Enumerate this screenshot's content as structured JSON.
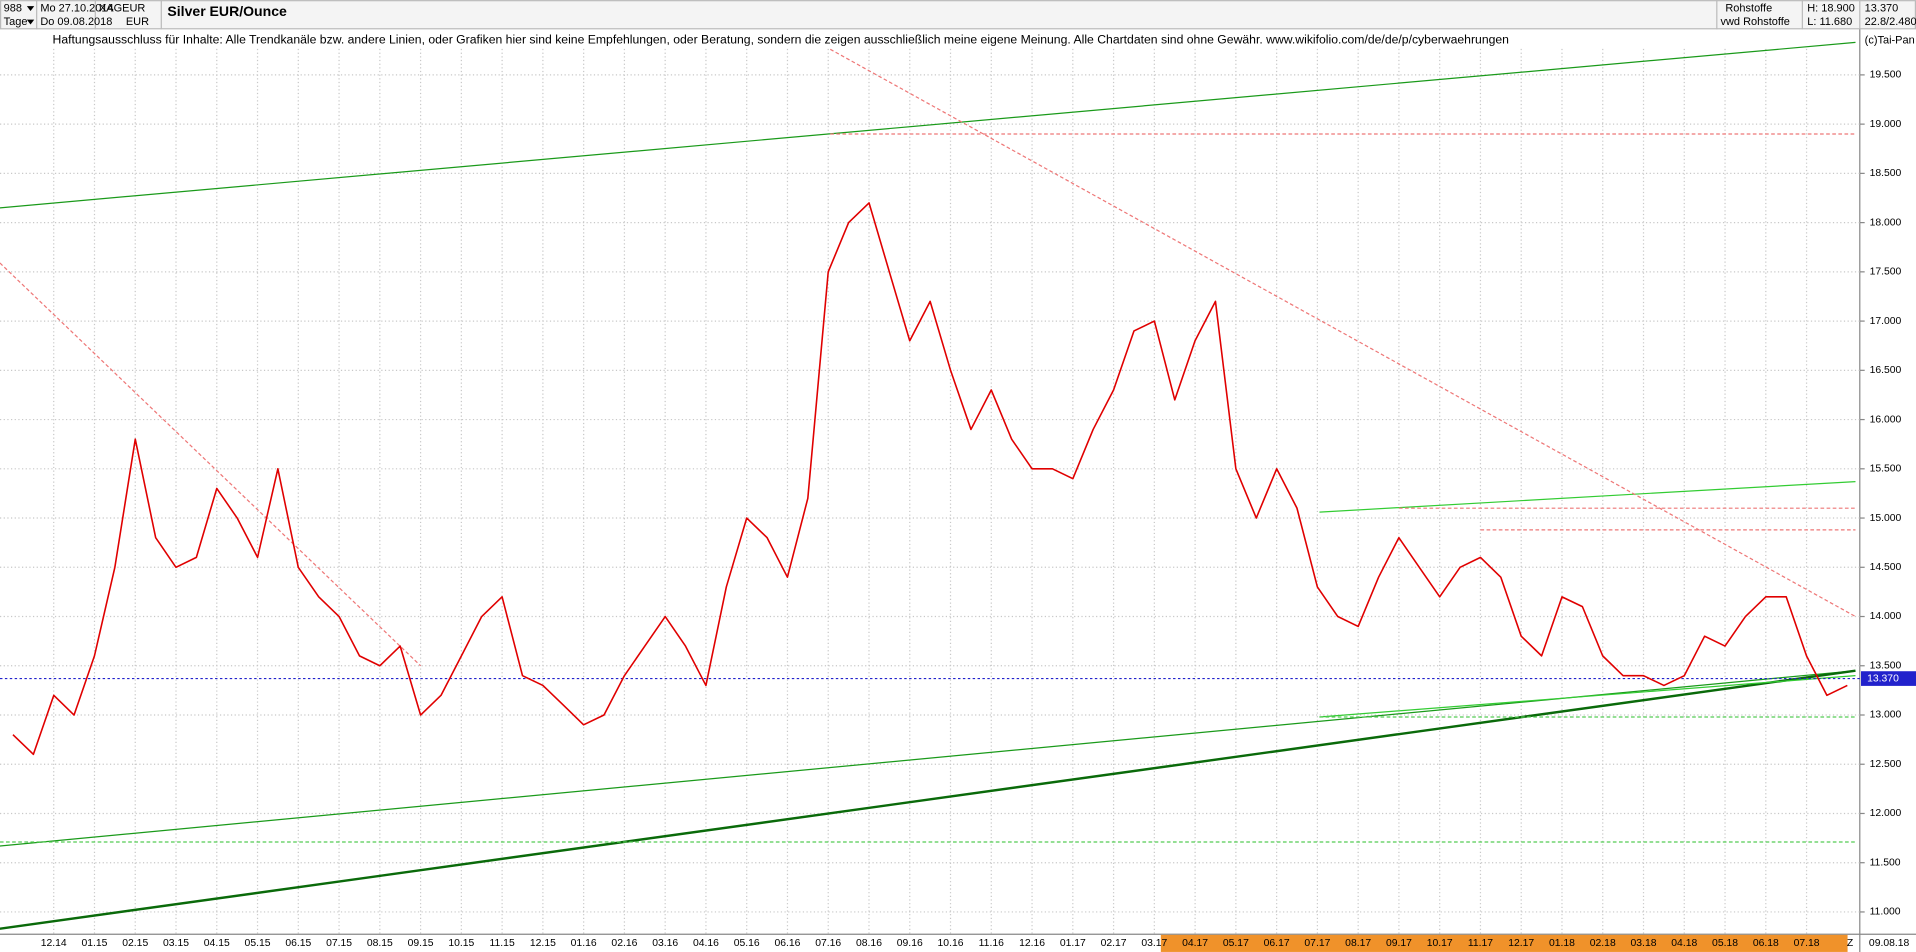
{
  "header": {
    "count": "988",
    "period": "Tage",
    "date_from": "Mo 27.10.2014",
    "date_to": "Do 09.08.2018",
    "symbol": "XAGEUR",
    "currency": "EUR",
    "group": "Rohstoffe",
    "source": "vwd Rohstoffe",
    "high": "H: 18.900",
    "low": "L: 11.680",
    "info": "22.8/2.480",
    "disclaimer": "Haftungsausschluss für Inhalte: Alle Trendkanäle bzw. andere Linien, oder Grafiken hier sind keine Empfehlungen, oder Beratung, sondern die zeigen ausschließlich meine eigene Meinung. Alle Chartdaten sind ohne Gewähr.  www.wikifolio.com/de/de/p/cyberwaehrungen",
    "copyright": "(c)Tai-Pan",
    "end_marker": "Z",
    "end_date": "09.08.18"
  },
  "chart_data": {
    "type": "line",
    "title": "Silver EUR/Ounce",
    "color": "#e00000",
    "categories": [
      null,
      null,
      "12.14",
      null,
      "01.15",
      null,
      "02.15",
      null,
      "03.15",
      null,
      "04.15",
      null,
      "05.15",
      null,
      "06.15",
      null,
      "07.15",
      null,
      "08.15",
      null,
      "09.15",
      null,
      "10.15",
      null,
      "11.15",
      null,
      "12.15",
      null,
      "01.16",
      null,
      "02.16",
      null,
      "03.16",
      null,
      "04.16",
      null,
      "05.16",
      null,
      "06.16",
      null,
      "07.16",
      null,
      "08.16",
      null,
      "09.16",
      null,
      "10.16",
      null,
      "11.16",
      null,
      "12.16",
      null,
      "01.17",
      null,
      "02.17",
      null,
      "03.17",
      null,
      "04.17",
      null,
      "05.17",
      null,
      "06.17",
      null,
      "07.17",
      null,
      "08.17",
      null,
      "09.17",
      null,
      "10.17",
      null,
      "11.17",
      null,
      "12.17",
      null,
      "01.18",
      null,
      "02.18",
      null,
      "03.18",
      null,
      "04.18",
      null,
      "05.18",
      null,
      "06.18",
      null,
      "07.18",
      null,
      null
    ],
    "values": [
      12.8,
      12.6,
      13.2,
      13.0,
      13.6,
      14.5,
      15.8,
      14.8,
      14.5,
      14.6,
      15.3,
      15.0,
      14.6,
      15.5,
      14.5,
      14.2,
      14.0,
      13.6,
      13.5,
      13.7,
      13.0,
      13.2,
      13.6,
      14.0,
      14.2,
      13.4,
      13.3,
      13.1,
      12.9,
      13.0,
      13.4,
      13.7,
      14.0,
      13.7,
      13.3,
      14.3,
      15.0,
      14.8,
      14.4,
      15.2,
      17.5,
      18.0,
      18.2,
      17.5,
      16.8,
      17.2,
      16.5,
      15.9,
      16.3,
      15.8,
      15.5,
      15.5,
      15.4,
      15.9,
      16.3,
      16.9,
      17.0,
      16.2,
      16.8,
      17.2,
      15.5,
      15.0,
      15.5,
      15.1,
      14.3,
      14.0,
      13.9,
      14.4,
      14.8,
      14.5,
      14.2,
      14.5,
      14.6,
      14.4,
      13.8,
      13.6,
      14.2,
      14.1,
      13.6,
      13.4,
      13.4,
      13.3,
      13.4,
      13.8,
      13.7,
      14.0,
      14.2,
      14.2,
      13.6,
      13.2,
      13.3
    ],
    "ylim": [
      10.78,
      20.26
    ],
    "yticks": [
      {
        "value": 11,
        "label": "11.000"
      },
      {
        "value": 11.5,
        "label": "11.500"
      },
      {
        "value": 12,
        "label": "12.000"
      },
      {
        "value": 12.5,
        "label": "12.500"
      },
      {
        "value": 13,
        "label": "13.000"
      },
      {
        "value": 13.5,
        "label": "13.500"
      },
      {
        "value": 14,
        "label": "14.000"
      },
      {
        "value": 14.5,
        "label": "14.500"
      },
      {
        "value": 15,
        "label": "15.000"
      },
      {
        "value": 15.5,
        "label": "15.500"
      },
      {
        "value": 16,
        "label": "16.000"
      },
      {
        "value": 16.5,
        "label": "16.500"
      },
      {
        "value": 17,
        "label": "17.000"
      },
      {
        "value": 17.5,
        "label": "17.500"
      },
      {
        "value": 18,
        "label": "18.000"
      },
      {
        "value": 18.5,
        "label": "18.500"
      },
      {
        "value": 19,
        "label": "19.000"
      },
      {
        "value": 19.5,
        "label": "19.500"
      }
    ],
    "grid": true,
    "last_value": {
      "value": 13.37,
      "label": "13.370"
    },
    "last_color": "#2222cc",
    "lines": [
      {
        "color": "#1a9a1a",
        "width": 1,
        "x": [
          -0.64,
          90.4
        ],
        "y": [
          18.15,
          19.83
        ]
      },
      {
        "color": "#1a9a1a",
        "width": 1,
        "x": [
          -0.64,
          90.4
        ],
        "y": [
          11.67,
          13.45
        ]
      },
      {
        "color": "#0a6a0a",
        "width": 2,
        "x": [
          -0.64,
          90.4
        ],
        "y": [
          10.83,
          13.45
        ]
      },
      {
        "color": "#33cc33",
        "width": 1,
        "x": [
          64.1,
          90.4
        ],
        "y": [
          15.06,
          15.37
        ]
      },
      {
        "color": "#33cc33",
        "width": 1,
        "x": [
          64.1,
          90.4
        ],
        "y": [
          12.98,
          13.4
        ]
      },
      {
        "color": "#ee7777",
        "width": 1,
        "dash": true,
        "x": [
          -0.64,
          20.0
        ],
        "y": [
          17.59,
          13.5
        ]
      },
      {
        "color": "#ee7777",
        "width": 1,
        "dash": true,
        "x": [
          40.1,
          90.4
        ],
        "y": [
          19.76,
          14.0
        ]
      },
      {
        "color": "#ee7777",
        "width": 1,
        "dash": true,
        "x": [
          40.1,
          90.4
        ],
        "y": [
          18.9,
          18.9
        ]
      },
      {
        "color": "#ee7777",
        "width": 1,
        "dash": true,
        "x": [
          68.0,
          90.4
        ],
        "y": [
          15.1,
          15.1
        ]
      },
      {
        "color": "#ee7777",
        "width": 1,
        "dash": true,
        "x": [
          72.0,
          90.4
        ],
        "y": [
          14.88,
          14.88
        ]
      },
      {
        "color": "#55cc55",
        "width": 1,
        "dash": true,
        "x": [
          -0.64,
          90.4
        ],
        "y": [
          11.71,
          11.71
        ]
      },
      {
        "color": "#55cc55",
        "width": 1,
        "dash": true,
        "x": [
          64.1,
          90.4
        ],
        "y": [
          12.98,
          12.98
        ]
      }
    ]
  }
}
